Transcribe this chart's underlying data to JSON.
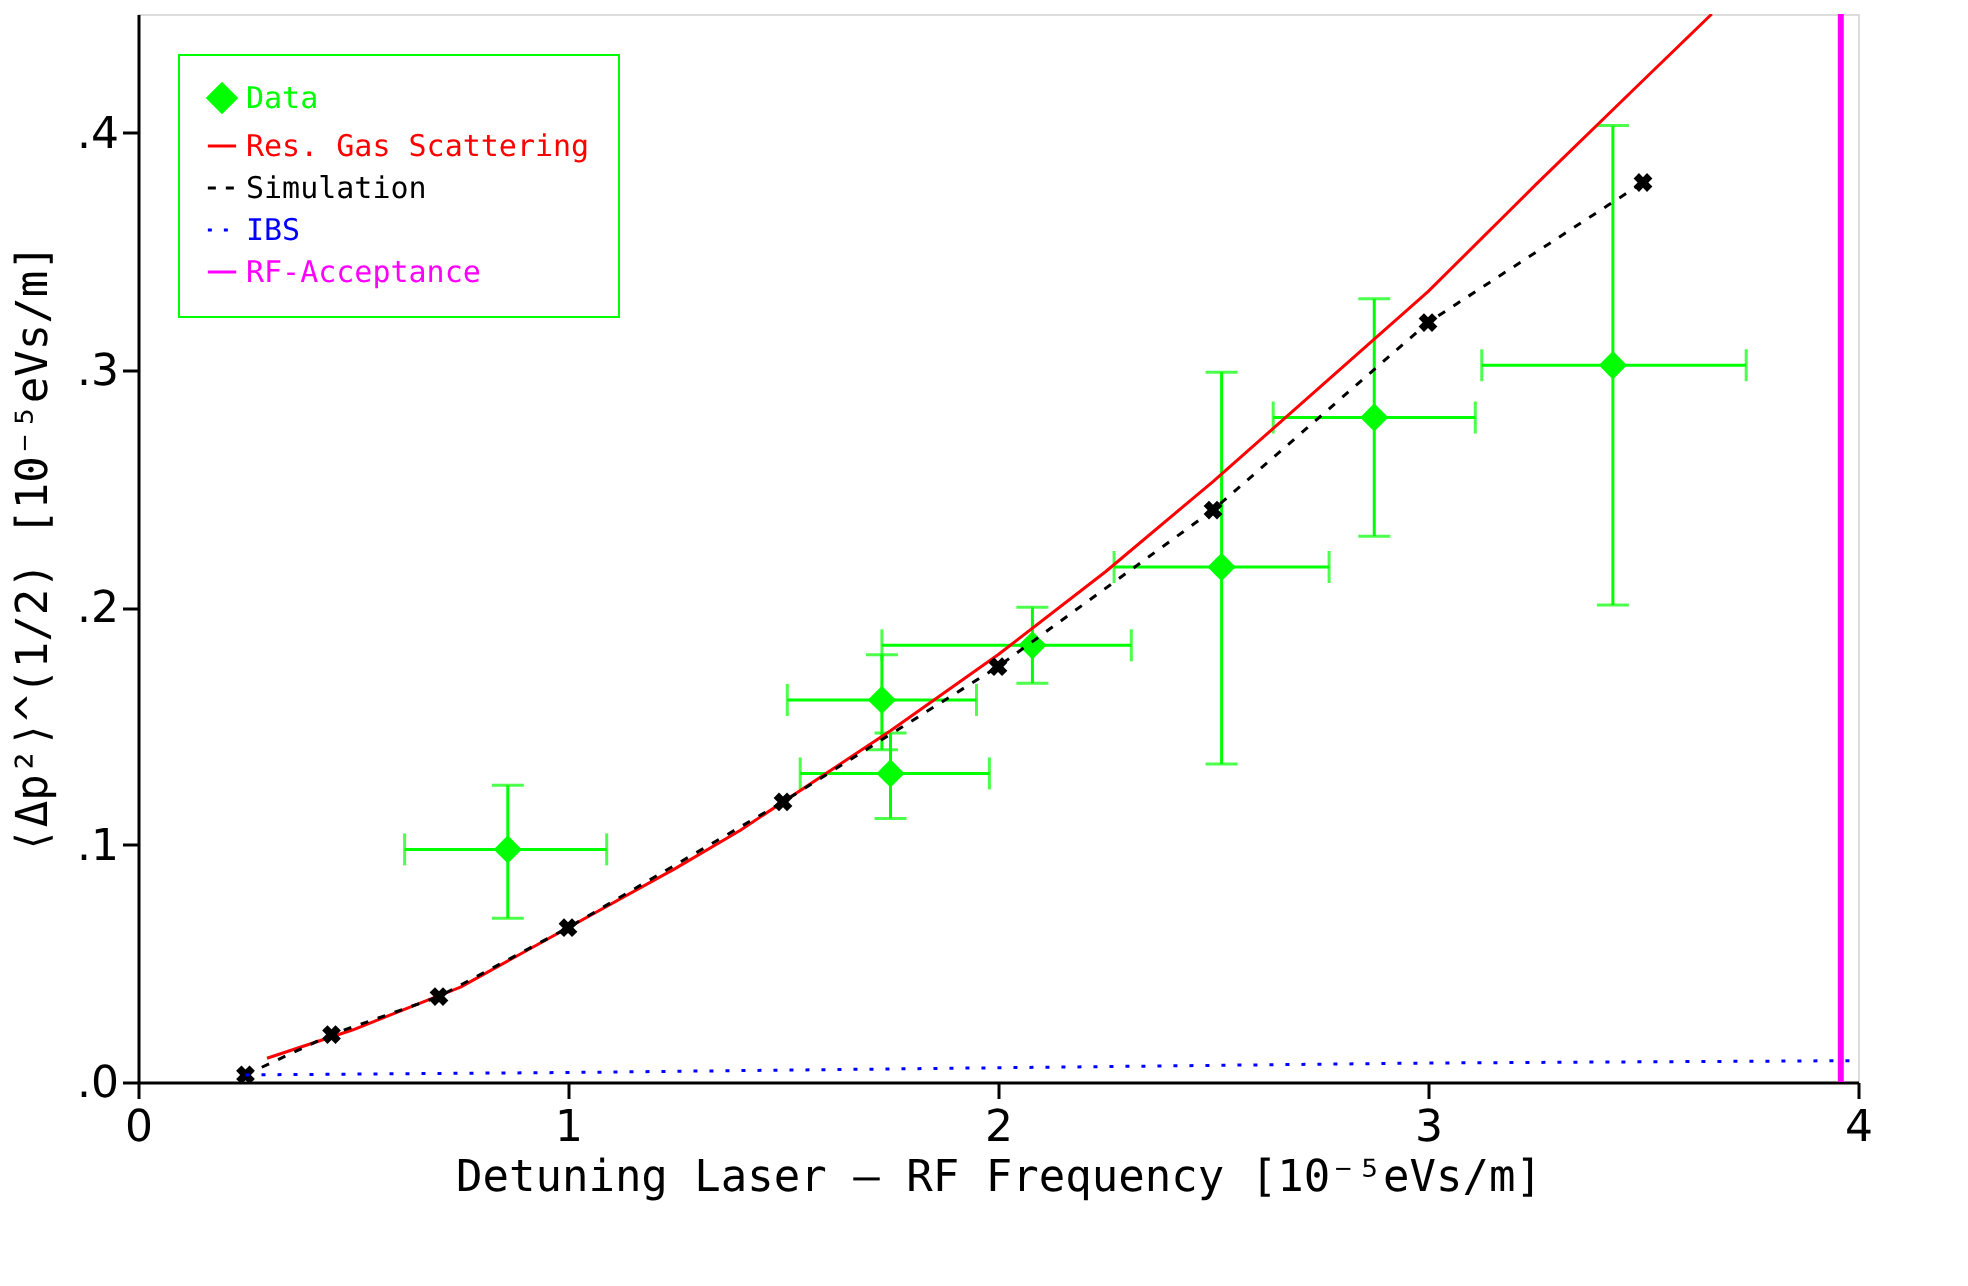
{
  "chart_data": {
    "type": "scatter",
    "xlabel": "Detuning Laser – RF Frequency [10⁻⁵eVs/m]",
    "ylabel": "⟨Δp²⟩^(1/2) [10⁻⁵eVs/m]",
    "xlim": [
      0,
      4
    ],
    "ylim": [
      0,
      0.45
    ],
    "xticks": [
      0,
      1,
      2,
      3,
      4
    ],
    "yticks": [
      {
        "value": 0,
        "label": ".0"
      },
      {
        "value": 0.1,
        "label": ".1"
      },
      {
        "value": 0.2,
        "label": ".2"
      },
      {
        "value": 0.3,
        "label": ".3"
      },
      {
        "value": 0.4,
        "label": ".4"
      }
    ],
    "grid": false,
    "legend": "top left",
    "series": [
      {
        "name": "Data",
        "color": "#00ff00",
        "marker": "diamond",
        "x": [
          0.86,
          1.73,
          1.75,
          2.08,
          2.52,
          2.875,
          3.43
        ],
        "values": [
          0.098,
          0.161,
          0.13,
          0.184,
          0.217,
          0.28,
          0.302
        ],
        "errors": [
          [
            0.069,
            0.125
          ],
          [
            0.14,
            0.18
          ],
          [
            0.111,
            0.147
          ],
          [
            0.168,
            0.2
          ],
          [
            0.134,
            0.299
          ],
          [
            0.23,
            0.33
          ],
          [
            0.201,
            0.403
          ]
        ],
        "xerrors": [
          [
            0.62,
            1.09
          ],
          [
            1.51,
            1.95
          ],
          [
            1.54,
            1.98
          ],
          [
            1.73,
            2.31
          ],
          [
            2.27,
            2.77
          ],
          [
            2.64,
            3.11
          ],
          [
            3.125,
            3.74
          ]
        ]
      },
      {
        "name": "Res. Gas Scattering",
        "type": "line",
        "color": "#ff0000",
        "line_style": "solid",
        "x": [
          0.3,
          0.5,
          0.75,
          0.9,
          1.25,
          1.4,
          1.75,
          2.0,
          2.25,
          2.5,
          2.75,
          3.0,
          3.25,
          3.5,
          3.66
        ],
        "values": [
          0.01,
          0.022,
          0.04,
          0.055,
          0.09,
          0.106,
          0.148,
          0.18,
          0.215,
          0.253,
          0.293,
          0.333,
          0.378,
          0.422,
          0.45
        ]
      },
      {
        "name": "Simulation",
        "type": "line",
        "color": "#000000",
        "marker": "cross",
        "line_style": "dashed",
        "x": [
          0.25,
          0.45,
          0.7,
          1.0,
          1.5,
          2.0,
          2.5,
          3.0,
          3.5
        ],
        "values": [
          0.003,
          0.02,
          0.036,
          0.065,
          0.118,
          0.175,
          0.241,
          0.32,
          0.379
        ]
      },
      {
        "name": "IBS",
        "type": "line",
        "color": "#0000ff",
        "line_style": "dotted",
        "x": [
          0.25,
          1,
          2,
          3,
          4
        ],
        "values": [
          0.003,
          0.004,
          0.006,
          0.008,
          0.009
        ]
      }
    ],
    "ref_lines": [
      {
        "axis": "x",
        "value": 3.96,
        "label": "RF-Acceptance",
        "color": "#ff00ff"
      }
    ]
  }
}
